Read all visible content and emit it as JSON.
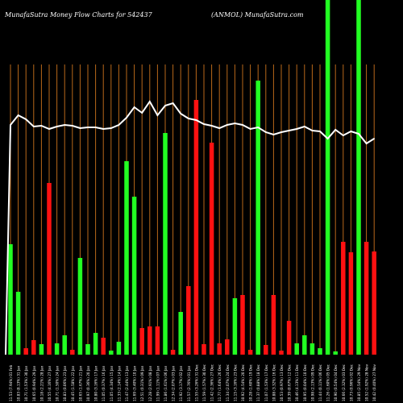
{
  "header": {
    "left": "MunafaSutra  Money Flow  Charts for 542437",
    "right": "(ANMOL) MunafaSutra.com"
  },
  "colors": {
    "background": "#000000",
    "up": "#22ff22",
    "down": "#ff1111",
    "gridline": "#b8681a",
    "flow_line": "#ffffff"
  },
  "chart_data": {
    "type": "bar",
    "title": "MunafaSutra  Money Flow  Charts for 542437",
    "subtitle": "(ANMOL) MunafaSutra.com",
    "ylim": [
      0,
      440
    ],
    "categories": [
      "11.53 (7.94%) 01 Feb",
      "10.83 (8.13%) 31 Jan",
      "10.71 (1.53%) 30 Jan",
      "10.65 (0.94%) 29 Jan",
      "10.18 (2.21%) 28 Jan",
      "10.55 (4.16%) 27 Jan",
      "10.71 (1.50%) 24 Jan",
      "10.83 (0.06%) 23 Jan",
      "10.45 (1.58%) 22 Jan",
      "10.65 (1.67%) 21 Jan",
      "10.97 (0.36%) 20 Jan",
      "10.80 (3.16%) 17 Jan",
      "11.05 (0.37%) 16 Jan",
      "11.05 (4.34%) 15 Jan",
      "11.33 (2.14%) 14 Jan",
      "11.47 (2.44%) 13 Jan",
      "11.69 (3.40%) 10 Jan",
      "12.51 (0.31%) 09 Jan",
      "12.28 (2.91%) 08 Jan",
      "11.99 (1.11%) 07 Jan",
      "11.86 (1.61%) 06 Jan",
      "12.34 (2.07%) 03 Jan",
      "11.92 (3.17%) 02 Jan",
      "11.57 (2.76%) 01 Jan",
      "11.55 (3.26%) 31 Dec",
      "11.59 (1.57%) 30 Dec",
      "11.42 (2.36%) 27 Dec",
      "11.77 (1.64%) 26 Dec",
      "11.34 (2.07%) 24 Dec",
      "11.15 (3.16%) 23 Dec",
      "10.92 (4.54%) 20 Dec",
      "10.28 (1.60%) 19 Dec",
      "11.37 (0.88%) 18 Dec",
      "11.07 (1.53%) 17 Dec",
      "10.88 (3.32%) 16 Dec",
      "10.53 (0.97%) 13 Dec",
      "10.39 (0.67%) 12 Dec",
      "10.46 (4.13%) 11 Dec",
      "10.95 (0.04%) 10 Dec",
      "10.98 (2.13%) 09 Dec",
      "11.44 (0.11%) 06 Dec",
      "11.26 (1.60%) 05 Dec",
      "10.90 (0.54%) 04 Dec",
      "10.66 (2.32%) 03 Dec",
      "10.73 (0.96%) 02 Dec",
      "10.85 (2.54%) 29 Nov",
      "10.52 (1.92%) 28 Nov",
      "10.42 (0.40%) 27 Nov"
    ],
    "series": [
      {
        "values": [
          137,
          78,
          8,
          18,
          13,
          213,
          14,
          24,
          6,
          120,
          13,
          27,
          21,
          5,
          16,
          240,
          196,
          33,
          35,
          35,
          275,
          6,
          53,
          85,
          316,
          13,
          263,
          14,
          19,
          70,
          74,
          6,
          340,
          12,
          74,
          5,
          42,
          14,
          24,
          14,
          8,
          440,
          4,
          140,
          127,
          440,
          140,
          128
        ],
        "direction": [
          "up",
          "up",
          "down",
          "down",
          "up",
          "down",
          "up",
          "up",
          "down",
          "up",
          "up",
          "up",
          "down",
          "up",
          "up",
          "up",
          "up",
          "down",
          "down",
          "down",
          "up",
          "down",
          "up",
          "down",
          "down",
          "down",
          "down",
          "down",
          "down",
          "up",
          "down",
          "down",
          "up",
          "down",
          "down",
          "down",
          "down",
          "up",
          "up",
          "up",
          "up",
          "up",
          "up",
          "down",
          "down",
          "up",
          "down",
          "down"
        ]
      },
      {
        "values": [
          285,
          297,
          292,
          283,
          284,
          280,
          283,
          285,
          284,
          281,
          282,
          282,
          280,
          281,
          285,
          294,
          307,
          300,
          314,
          297,
          309,
          312,
          299,
          293,
          291,
          286,
          284,
          281,
          285,
          287,
          285,
          280,
          282,
          276,
          273,
          276,
          278,
          280,
          283,
          278,
          277,
          268,
          279,
          272,
          277,
          274,
          262,
          268
        ]
      }
    ]
  }
}
